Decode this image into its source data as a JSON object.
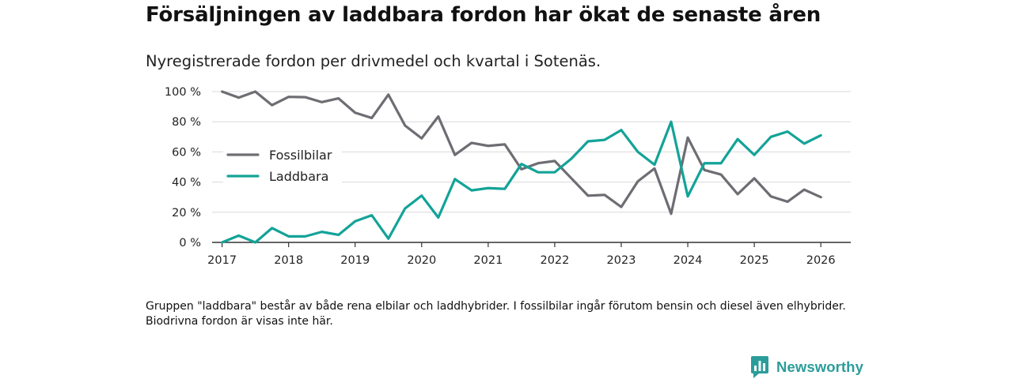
{
  "title": "Försäljningen av laddbara fordon har ökat de senaste åren",
  "subtitle": "Nyregistrerade fordon per drivmedel och kvartal i Sotenäs.",
  "note": "Gruppen \"laddbara\" består av både rena elbilar och laddhybrider. I fossilbilar ingår förutom bensin och diesel även elhybrider. Biodrivna fordon är visas inte här.",
  "brand": {
    "name": "Newsworthy",
    "icon": "newsworthy-logo-icon",
    "color": "#2a9d9a"
  },
  "chart_data": {
    "type": "line",
    "title": "Försäljningen av laddbara fordon har ökat de senaste åren",
    "xlabel": "",
    "ylabel": "",
    "ylim": [
      0,
      100
    ],
    "xlim": [
      2016.85,
      2026.45
    ],
    "yticks": [
      0,
      20,
      40,
      60,
      80,
      100
    ],
    "ytick_labels": [
      "0 %",
      "20 %",
      "40 %",
      "60 %",
      "80 %",
      "100 %"
    ],
    "xticks": [
      2017,
      2018,
      2019,
      2020,
      2021,
      2022,
      2023,
      2024,
      2025,
      2026
    ],
    "xtick_labels": [
      "2017",
      "2018",
      "2019",
      "2020",
      "2021",
      "2022",
      "2023",
      "2024",
      "2025",
      "2026"
    ],
    "grid": true,
    "legend_position": "left-middle",
    "x": [
      2017.0,
      2017.25,
      2017.5,
      2017.75,
      2018.0,
      2018.25,
      2018.5,
      2018.75,
      2019.0,
      2019.25,
      2019.5,
      2019.75,
      2020.0,
      2020.25,
      2020.5,
      2020.75,
      2021.0,
      2021.25,
      2021.5,
      2021.75,
      2022.0,
      2022.25,
      2022.5,
      2022.75,
      2023.0,
      2023.25,
      2023.5,
      2023.75,
      2024.0,
      2024.25,
      2024.5,
      2024.75,
      2025.0,
      2025.25,
      2025.5,
      2025.75,
      2026.0
    ],
    "series": [
      {
        "name": "Fossilbilar",
        "color": "#6e6d73",
        "values": [
          100,
          96,
          100,
          91,
          96.5,
          96.3,
          93,
          95.5,
          86,
          82.5,
          98,
          77.5,
          69,
          83.5,
          58,
          66,
          64,
          65,
          48.5,
          52.5,
          54,
          42.5,
          31,
          31.5,
          23.5,
          40.5,
          49,
          19,
          69.5,
          48,
          45,
          32,
          42.5,
          30.5,
          27,
          35,
          30
        ]
      },
      {
        "name": "Laddbara",
        "color": "#13a398",
        "values": [
          0,
          4.5,
          0,
          9.5,
          4,
          4,
          7,
          5,
          14,
          18,
          2.5,
          22.5,
          31,
          16.5,
          42,
          34.5,
          36,
          35.5,
          52,
          46.5,
          46.5,
          55.5,
          67,
          68,
          74.5,
          60,
          51.5,
          80,
          30.5,
          52.5,
          52.5,
          68.5,
          58,
          70,
          73.5,
          65.5,
          71
        ]
      }
    ]
  }
}
